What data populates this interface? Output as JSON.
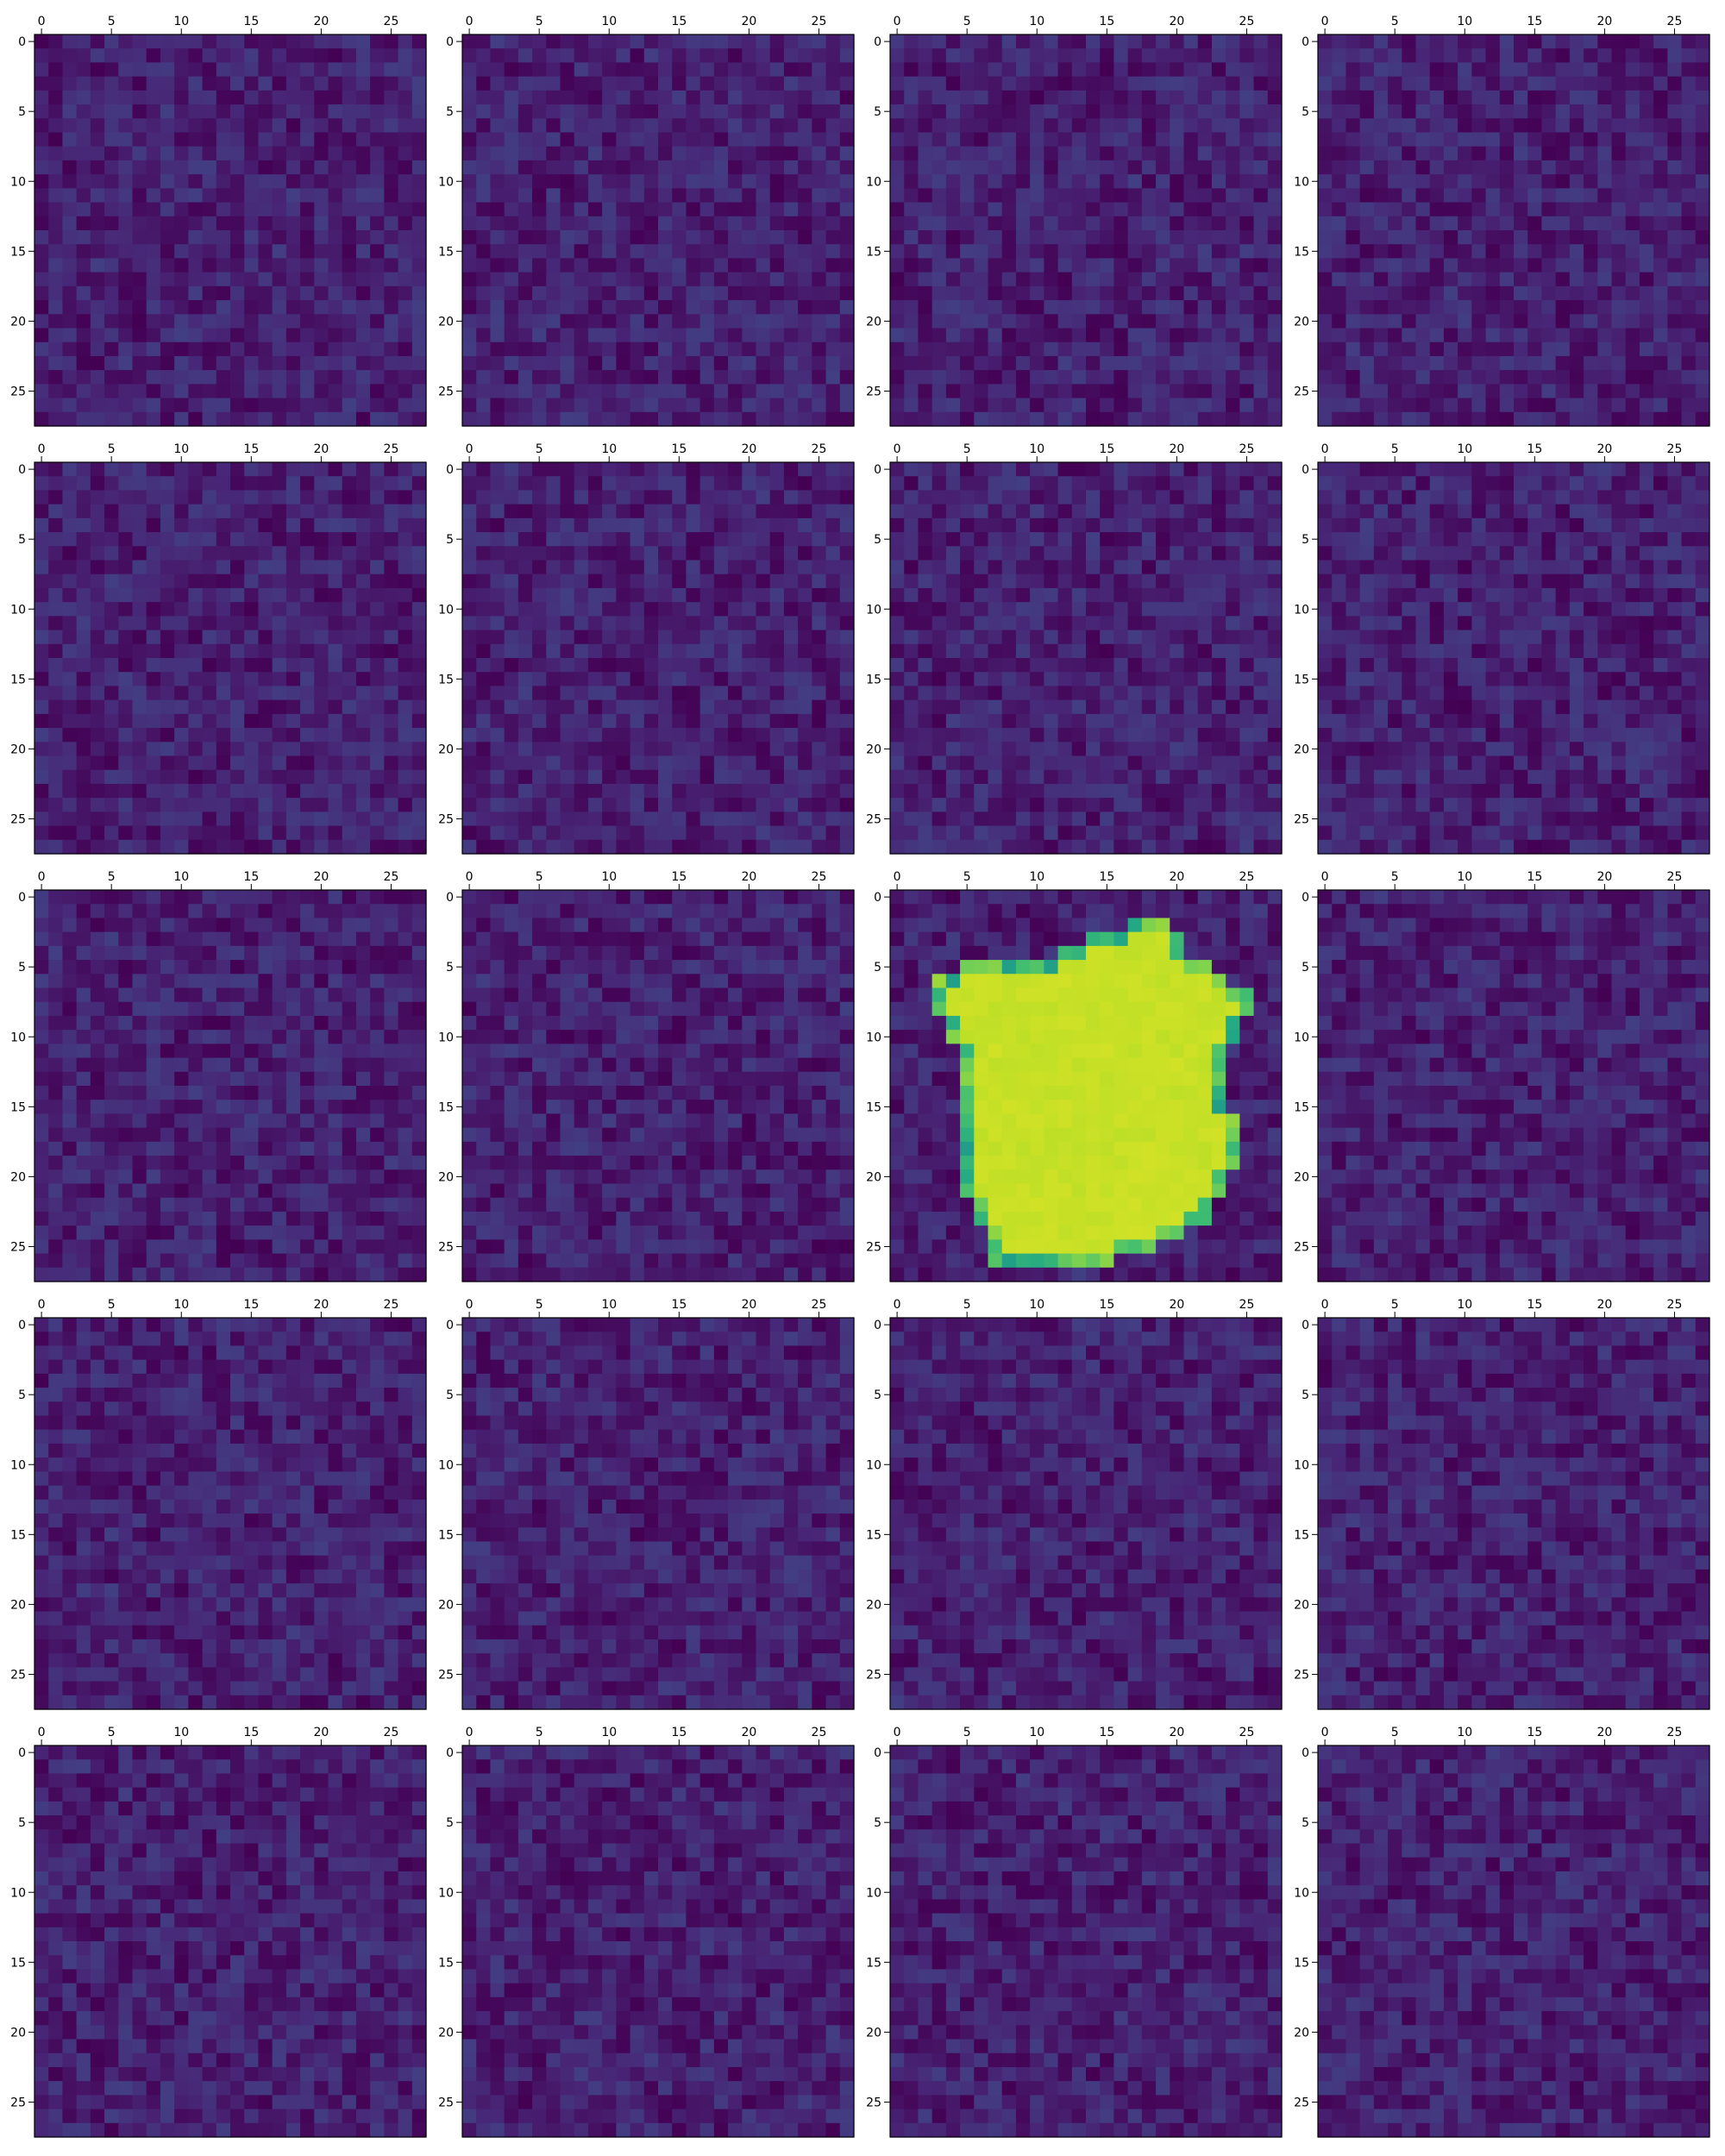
{
  "chart_data": {
    "type": "heatmap",
    "layout": {
      "rows": 5,
      "cols": 4
    },
    "image_shape": [
      28,
      28
    ],
    "colormap": "viridis",
    "value_range": [
      0,
      1
    ],
    "axes": {
      "x_ticks": [
        0,
        5,
        10,
        15,
        20,
        25
      ],
      "y_ticks": [
        0,
        5,
        10,
        15,
        20,
        25
      ],
      "x_tick_position": "top",
      "grid": false
    },
    "panels": [
      {
        "index": 0,
        "content": "noise",
        "noise_range": [
          0.0,
          0.18
        ]
      },
      {
        "index": 1,
        "content": "noise",
        "noise_range": [
          0.0,
          0.18
        ]
      },
      {
        "index": 2,
        "content": "noise",
        "noise_range": [
          0.0,
          0.18
        ]
      },
      {
        "index": 3,
        "content": "noise",
        "noise_range": [
          0.0,
          0.18
        ]
      },
      {
        "index": 4,
        "content": "noise",
        "noise_range": [
          0.0,
          0.18
        ]
      },
      {
        "index": 5,
        "content": "noise",
        "noise_range": [
          0.0,
          0.18
        ]
      },
      {
        "index": 6,
        "content": "noise",
        "noise_range": [
          0.0,
          0.18
        ]
      },
      {
        "index": 7,
        "content": "noise",
        "noise_range": [
          0.0,
          0.18
        ]
      },
      {
        "index": 8,
        "content": "noise",
        "noise_range": [
          0.0,
          0.18
        ]
      },
      {
        "index": 9,
        "content": "noise",
        "noise_range": [
          0.0,
          0.18
        ]
      },
      {
        "index": 10,
        "content": "shape",
        "noise_range": [
          0.0,
          0.18
        ],
        "shape_value": 0.93,
        "shape_rows": [
          {
            "row": 2,
            "start": 17,
            "end": 19
          },
          {
            "row": 3,
            "start": 14,
            "end": 20
          },
          {
            "row": 4,
            "start": 12,
            "end": 20
          },
          {
            "row": 5,
            "start": 5,
            "end": 22
          },
          {
            "row": 6,
            "start": 3,
            "end": 23
          },
          {
            "row": 7,
            "start": 3,
            "end": 25
          },
          {
            "row": 8,
            "start": 3,
            "end": 25
          },
          {
            "row": 9,
            "start": 4,
            "end": 24
          },
          {
            "row": 10,
            "start": 4,
            "end": 24
          },
          {
            "row": 11,
            "start": 5,
            "end": 23
          },
          {
            "row": 12,
            "start": 5,
            "end": 23
          },
          {
            "row": 13,
            "start": 5,
            "end": 23
          },
          {
            "row": 14,
            "start": 5,
            "end": 23
          },
          {
            "row": 15,
            "start": 5,
            "end": 23
          },
          {
            "row": 16,
            "start": 5,
            "end": 24
          },
          {
            "row": 17,
            "start": 5,
            "end": 24
          },
          {
            "row": 18,
            "start": 5,
            "end": 24
          },
          {
            "row": 19,
            "start": 5,
            "end": 24
          },
          {
            "row": 20,
            "start": 5,
            "end": 23
          },
          {
            "row": 21,
            "start": 5,
            "end": 23
          },
          {
            "row": 22,
            "start": 6,
            "end": 22
          },
          {
            "row": 23,
            "start": 6,
            "end": 22
          },
          {
            "row": 24,
            "start": 7,
            "end": 20
          },
          {
            "row": 25,
            "start": 7,
            "end": 18
          },
          {
            "row": 26,
            "start": 7,
            "end": 15
          }
        ]
      },
      {
        "index": 11,
        "content": "noise",
        "noise_range": [
          0.0,
          0.18
        ]
      },
      {
        "index": 12,
        "content": "noise",
        "noise_range": [
          0.0,
          0.18
        ]
      },
      {
        "index": 13,
        "content": "noise",
        "noise_range": [
          0.0,
          0.18
        ]
      },
      {
        "index": 14,
        "content": "noise",
        "noise_range": [
          0.0,
          0.18
        ]
      },
      {
        "index": 15,
        "content": "noise",
        "noise_range": [
          0.0,
          0.18
        ]
      },
      {
        "index": 16,
        "content": "noise",
        "noise_range": [
          0.0,
          0.18
        ]
      },
      {
        "index": 17,
        "content": "noise",
        "noise_range": [
          0.0,
          0.18
        ]
      },
      {
        "index": 18,
        "content": "noise",
        "noise_range": [
          0.0,
          0.18
        ]
      },
      {
        "index": 19,
        "content": "noise",
        "noise_range": [
          0.0,
          0.18
        ]
      }
    ]
  }
}
